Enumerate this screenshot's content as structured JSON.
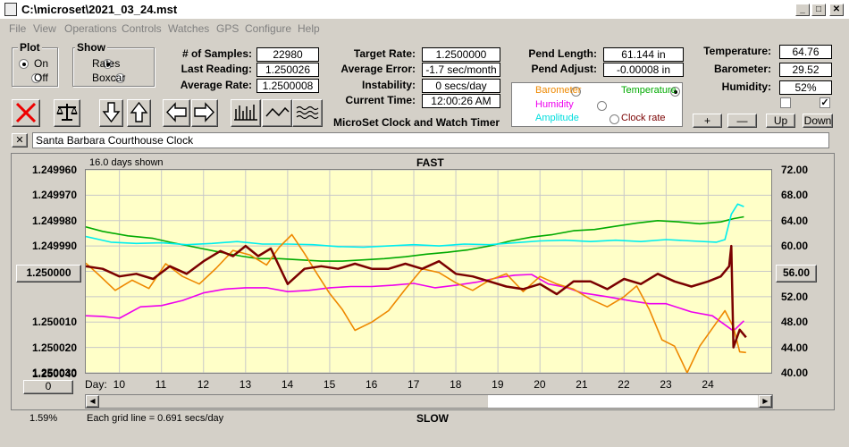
{
  "window": {
    "title": "C:\\microset\\2021_03_24.mst",
    "minimize": "_",
    "maximize": "□",
    "close": "✕"
  },
  "menu": [
    "File",
    "View",
    "Operations",
    "Controls",
    "Watches",
    "GPS",
    "Configure",
    "Help"
  ],
  "plot_group": {
    "title": "Plot",
    "on": "On",
    "off": "Off",
    "selected": "On"
  },
  "show_group": {
    "title": "Show",
    "rates": "Rates",
    "boxcar": "Boxcar",
    "selected": "Rates"
  },
  "stats": {
    "samples_label": "# of Samples:",
    "samples": "22980",
    "last_label": "Last Reading:",
    "last": "1.250026",
    "avg_rate_label": "Average Rate:",
    "avg_rate": "1.2500008",
    "target_label": "Target Rate:",
    "target": "1.2500000",
    "avg_err_label": "Average Error:",
    "avg_err": "-1.7 sec/month",
    "instab_label": "Instability:",
    "instab": "0 secs/day",
    "time_label": "Current Time:",
    "time": "12:00:26 AM",
    "pend_len_label": "Pend Length:",
    "pend_len": "61.144 in",
    "pend_adj_label": "Pend Adjust:",
    "pend_adj": "-0.00008 in",
    "temp_label": "Temperature:",
    "temp": "64.76",
    "baro_label": "Barometer:",
    "baro": "29.52",
    "hum_label": "Humidity:",
    "hum": "52%"
  },
  "app_title": "MicroSet Clock and Watch Timer",
  "series_select": {
    "barometer": "Barometer",
    "temperature": "Temperature",
    "humidity": "Humidity",
    "amplitude": "Amplitude",
    "clock_rate": "Clock rate",
    "selected": "Temperature"
  },
  "adjust_buttons": {
    "plus": "+",
    "minus": "—",
    "up": "Up",
    "down": "Down"
  },
  "checkboxes": {
    "left": false,
    "right": true
  },
  "clock_name": "Santa Barbara Courthouse Clock",
  "colors": {
    "barometer": "#ee8800",
    "temperature": "#00aa00",
    "humidity": "#ee00ee",
    "amplitude": "#00eeee",
    "clock_rate": "#7a0000",
    "plot_bg": "#ffffc8",
    "grid": "#c8c8c8"
  },
  "chart_data": {
    "type": "line",
    "top_label": "FAST",
    "bottom_label": "SLOW",
    "days_shown": "16.0 days shown",
    "grid_note": "Each grid line = 0.691 secs/day",
    "left_ticks": [
      "1.249960",
      "1.249970",
      "1.249980",
      "1.249990",
      "1.250000",
      "1.250010",
      "1.250020",
      "1.250030",
      "1.250040"
    ],
    "right_ticks": [
      "72.00",
      "68.00",
      "64.00",
      "60.00",
      "56.00",
      "52.00",
      "48.00",
      "44.00",
      "40.00"
    ],
    "x_label": "Day:",
    "days": [
      10,
      11,
      12,
      13,
      14,
      15,
      16,
      17,
      18,
      19,
      20,
      21,
      22,
      23,
      24
    ],
    "x_range": [
      9.2,
      25.5
    ],
    "left_range": [
      1.24996,
      1.25004
    ],
    "right_range": [
      40,
      72
    ],
    "left_box": "1.250000",
    "right_box": "56.00",
    "bottom_left_box": "0",
    "percent": "1.59%",
    "series": [
      {
        "name": "Temperature",
        "color": "#00aa00",
        "axis": "right",
        "points": [
          [
            9.2,
            63
          ],
          [
            9.6,
            62.3
          ],
          [
            10.2,
            61.6
          ],
          [
            10.8,
            61.2
          ],
          [
            11.2,
            60.6
          ],
          [
            11.8,
            59.8
          ],
          [
            12.4,
            59
          ],
          [
            12.9,
            58.4
          ],
          [
            13.3,
            58
          ],
          [
            13.8,
            58
          ],
          [
            14.3,
            57.8
          ],
          [
            14.8,
            57.6
          ],
          [
            15.3,
            57.6
          ],
          [
            15.8,
            57.8
          ],
          [
            16.3,
            58
          ],
          [
            16.8,
            58.3
          ],
          [
            17.3,
            58.7
          ],
          [
            17.8,
            59
          ],
          [
            18.3,
            59.4
          ],
          [
            18.8,
            60
          ],
          [
            19.3,
            60.8
          ],
          [
            19.8,
            61.4
          ],
          [
            20.3,
            61.8
          ],
          [
            20.8,
            62.4
          ],
          [
            21.3,
            62.6
          ],
          [
            21.8,
            63.1
          ],
          [
            22.3,
            63.6
          ],
          [
            22.8,
            64
          ],
          [
            23.3,
            63.8
          ],
          [
            23.8,
            63.5
          ],
          [
            24.3,
            63.8
          ],
          [
            24.6,
            64.3
          ],
          [
            24.85,
            64.6
          ]
        ]
      },
      {
        "name": "Amplitude",
        "color": "#00eeee",
        "axis": "right",
        "points": [
          [
            9.2,
            61.5
          ],
          [
            9.8,
            60.6
          ],
          [
            10.4,
            60.4
          ],
          [
            11,
            60.5
          ],
          [
            11.6,
            60.2
          ],
          [
            12.2,
            60.4
          ],
          [
            12.8,
            60.7
          ],
          [
            13.4,
            60.3
          ],
          [
            14,
            60.3
          ],
          [
            14.6,
            60.2
          ],
          [
            15.2,
            59.9
          ],
          [
            15.8,
            59.8
          ],
          [
            16.4,
            60
          ],
          [
            17,
            60.2
          ],
          [
            17.6,
            60
          ],
          [
            18.2,
            60.3
          ],
          [
            18.8,
            60.2
          ],
          [
            19.4,
            60.5
          ],
          [
            20,
            60.8
          ],
          [
            20.6,
            60.9
          ],
          [
            21.2,
            60.7
          ],
          [
            21.8,
            60.9
          ],
          [
            22.4,
            60.7
          ],
          [
            23,
            61
          ],
          [
            23.6,
            60.8
          ],
          [
            24.2,
            60.6
          ],
          [
            24.4,
            61
          ],
          [
            24.55,
            65
          ],
          [
            24.7,
            66.6
          ],
          [
            24.85,
            66.2
          ]
        ]
      },
      {
        "name": "Humidity",
        "color": "#ee00ee",
        "axis": "right",
        "points": [
          [
            9.2,
            49
          ],
          [
            9.6,
            48.9
          ],
          [
            10,
            48.6
          ],
          [
            10.5,
            50.4
          ],
          [
            11,
            50.6
          ],
          [
            11.5,
            51.4
          ],
          [
            12,
            52.6
          ],
          [
            12.5,
            53.2
          ],
          [
            13,
            53.4
          ],
          [
            13.5,
            53.4
          ],
          [
            14,
            52.8
          ],
          [
            14.5,
            53
          ],
          [
            15,
            53.4
          ],
          [
            15.5,
            53.6
          ],
          [
            16,
            53.6
          ],
          [
            16.5,
            53.8
          ],
          [
            17,
            54.1
          ],
          [
            17.5,
            53.4
          ],
          [
            18,
            53.8
          ],
          [
            18.5,
            54.3
          ],
          [
            19,
            55
          ],
          [
            19.4,
            55.4
          ],
          [
            19.8,
            55.5
          ],
          [
            20.2,
            54
          ],
          [
            20.6,
            53.5
          ],
          [
            21,
            52.6
          ],
          [
            21.6,
            52
          ],
          [
            22.2,
            51.3
          ],
          [
            22.6,
            50.9
          ],
          [
            23,
            50.9
          ],
          [
            23.6,
            49.6
          ],
          [
            24.1,
            49
          ],
          [
            24.6,
            46.6
          ],
          [
            24.85,
            48.2
          ]
        ]
      },
      {
        "name": "Barometer",
        "color": "#ee8800",
        "axis": "right",
        "points": [
          [
            9.2,
            57.3
          ],
          [
            9.5,
            55.5
          ],
          [
            9.9,
            53
          ],
          [
            10.3,
            54.6
          ],
          [
            10.7,
            53.3
          ],
          [
            11.1,
            57.2
          ],
          [
            11.5,
            55.2
          ],
          [
            11.9,
            54
          ],
          [
            12.3,
            56.5
          ],
          [
            12.7,
            59.3
          ],
          [
            13.1,
            58.6
          ],
          [
            13.5,
            57
          ],
          [
            13.8,
            59.8
          ],
          [
            14.1,
            61.8
          ],
          [
            14.4,
            58.8
          ],
          [
            14.7,
            55.6
          ],
          [
            15,
            52.5
          ],
          [
            15.3,
            50
          ],
          [
            15.6,
            46.7
          ],
          [
            16,
            48
          ],
          [
            16.4,
            49.8
          ],
          [
            16.8,
            53.2
          ],
          [
            17.2,
            56.4
          ],
          [
            17.6,
            55.8
          ],
          [
            18,
            54.2
          ],
          [
            18.4,
            53
          ],
          [
            18.8,
            54.6
          ],
          [
            19.2,
            55.6
          ],
          [
            19.6,
            52.8
          ],
          [
            20,
            55.2
          ],
          [
            20.4,
            54
          ],
          [
            20.8,
            53.2
          ],
          [
            21.2,
            51.6
          ],
          [
            21.6,
            50.4
          ],
          [
            22,
            52
          ],
          [
            22.3,
            53.7
          ],
          [
            22.6,
            50
          ],
          [
            22.9,
            45.2
          ],
          [
            23.2,
            44.2
          ],
          [
            23.5,
            40
          ],
          [
            23.8,
            44.2
          ],
          [
            24.1,
            47
          ],
          [
            24.4,
            49.8
          ],
          [
            24.6,
            47.2
          ],
          [
            24.75,
            43.3
          ],
          [
            24.9,
            43.2
          ]
        ]
      },
      {
        "name": "Clock rate",
        "color": "#7a0000",
        "axis": "left",
        "points": [
          [
            9.2,
            1.249998
          ],
          [
            9.6,
            1.249999
          ],
          [
            10,
            1.250002
          ],
          [
            10.4,
            1.250001
          ],
          [
            10.8,
            1.250003
          ],
          [
            11.2,
            1.249998
          ],
          [
            11.6,
            1.250001
          ],
          [
            12,
            1.249996
          ],
          [
            12.4,
            1.249992
          ],
          [
            12.7,
            1.249994
          ],
          [
            13,
            1.24999
          ],
          [
            13.3,
            1.249994
          ],
          [
            13.6,
            1.249991
          ],
          [
            14,
            1.250005
          ],
          [
            14.4,
            1.249999
          ],
          [
            14.8,
            1.249998
          ],
          [
            15.2,
            1.249999
          ],
          [
            15.6,
            1.249997
          ],
          [
            16,
            1.249999
          ],
          [
            16.4,
            1.249999
          ],
          [
            16.8,
            1.249997
          ],
          [
            17.2,
            1.249999
          ],
          [
            17.6,
            1.249996
          ],
          [
            18,
            1.250001
          ],
          [
            18.4,
            1.250002
          ],
          [
            18.8,
            1.250004
          ],
          [
            19.2,
            1.250006
          ],
          [
            19.6,
            1.250007
          ],
          [
            20,
            1.250005
          ],
          [
            20.4,
            1.250009
          ],
          [
            20.8,
            1.250004
          ],
          [
            21.2,
            1.250004
          ],
          [
            21.6,
            1.250007
          ],
          [
            22,
            1.250003
          ],
          [
            22.4,
            1.250005
          ],
          [
            22.8,
            1.250001
          ],
          [
            23.2,
            1.250004
          ],
          [
            23.6,
            1.250006
          ],
          [
            24,
            1.250004
          ],
          [
            24.3,
            1.250002
          ],
          [
            24.5,
            1.249998
          ],
          [
            24.55,
            1.24999
          ],
          [
            24.6,
            1.25003
          ],
          [
            24.75,
            1.250023
          ],
          [
            24.9,
            1.250026
          ]
        ]
      }
    ]
  }
}
